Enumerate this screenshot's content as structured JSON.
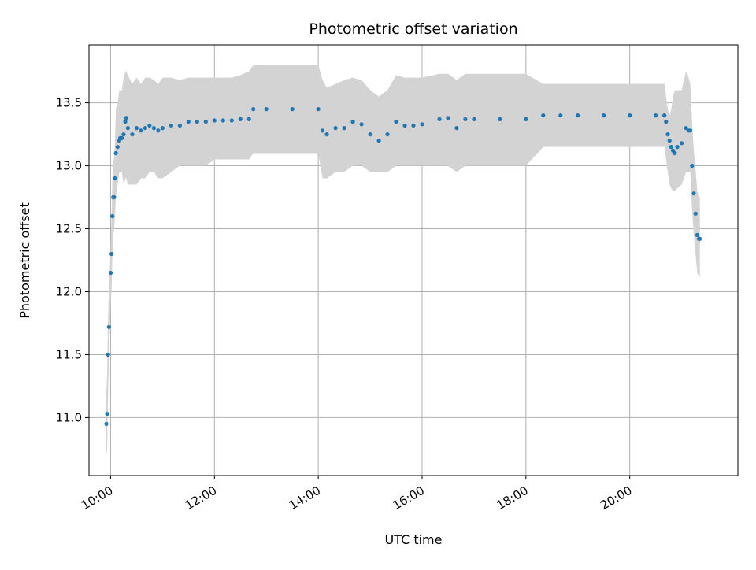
{
  "chart_data": {
    "type": "scatter",
    "title": "Photometric offset variation",
    "xlabel": "UTC time",
    "ylabel": "Photometric offset",
    "xlim": [
      "09:35",
      "22:05"
    ],
    "ylim": [
      10.54,
      13.96
    ],
    "grid": true,
    "x_ticks": [
      "10:00",
      "12:00",
      "14:00",
      "16:00",
      "18:00",
      "20:00"
    ],
    "y_ticks": [
      11.0,
      11.5,
      12.0,
      12.5,
      13.0,
      13.5
    ],
    "colors": {
      "points": "#1f77b4",
      "error_band": "#d3d3d3",
      "grid": "#b0b0b0"
    },
    "series": [
      {
        "x": [
          "09:55",
          "09:56",
          "09:57",
          "09:58",
          "10:00",
          "10:01",
          "10:02",
          "10:03",
          "10:04",
          "10:05",
          "10:06",
          "10:08",
          "10:10",
          "10:11",
          "10:12",
          "10:13",
          "10:15",
          "10:17",
          "10:18",
          "10:20",
          "10:25",
          "10:30",
          "10:35",
          "10:40",
          "10:45",
          "10:50",
          "10:55",
          "11:00",
          "11:10",
          "11:20",
          "11:30",
          "11:40",
          "11:50",
          "12:00",
          "12:10",
          "12:20",
          "12:30",
          "12:40",
          "12:45",
          "13:00",
          "13:30",
          "14:00",
          "14:05",
          "14:10",
          "14:20",
          "14:30",
          "14:40",
          "14:50",
          "15:00",
          "15:10",
          "15:20",
          "15:30",
          "15:40",
          "15:50",
          "16:00",
          "16:20",
          "16:30",
          "16:40",
          "16:50",
          "17:00",
          "17:30",
          "18:00",
          "18:20",
          "18:40",
          "19:00",
          "19:30",
          "20:00",
          "20:30",
          "20:40",
          "20:42",
          "20:44",
          "20:46",
          "20:48",
          "20:50",
          "20:52",
          "20:55",
          "21:00",
          "21:05",
          "21:08",
          "21:10",
          "21:12",
          "21:14",
          "21:16",
          "21:18",
          "21:20",
          "21:21"
        ],
        "y": [
          10.95,
          11.03,
          11.5,
          11.72,
          12.15,
          12.3,
          12.6,
          12.75,
          12.75,
          12.9,
          13.1,
          13.15,
          13.2,
          13.22,
          13.22,
          13.22,
          13.25,
          13.35,
          13.38,
          13.3,
          13.25,
          13.3,
          13.28,
          13.3,
          13.32,
          13.3,
          13.28,
          13.3,
          13.32,
          13.32,
          13.35,
          13.35,
          13.35,
          13.36,
          13.36,
          13.36,
          13.37,
          13.37,
          13.45,
          13.45,
          13.45,
          13.45,
          13.28,
          13.25,
          13.3,
          13.3,
          13.35,
          13.33,
          13.25,
          13.2,
          13.25,
          13.35,
          13.32,
          13.32,
          13.33,
          13.37,
          13.38,
          13.3,
          13.37,
          13.37,
          13.37,
          13.37,
          13.4,
          13.4,
          13.4,
          13.4,
          13.4,
          13.4,
          13.4,
          13.35,
          13.25,
          13.2,
          13.15,
          13.12,
          13.1,
          13.15,
          13.18,
          13.3,
          13.28,
          13.28,
          13.0,
          12.78,
          12.62,
          12.45,
          12.42,
          12.42
        ],
        "low": [
          10.7,
          10.75,
          11.2,
          11.5,
          11.9,
          12.0,
          12.3,
          12.45,
          12.5,
          12.6,
          12.75,
          12.85,
          12.95,
          12.95,
          12.95,
          12.95,
          12.85,
          12.9,
          12.9,
          12.85,
          12.85,
          12.85,
          12.9,
          12.9,
          12.95,
          12.95,
          12.9,
          12.9,
          12.95,
          13.0,
          13.0,
          13.0,
          13.0,
          13.05,
          13.05,
          13.05,
          13.05,
          13.05,
          13.1,
          13.1,
          13.1,
          13.1,
          12.9,
          12.9,
          12.95,
          12.95,
          13.0,
          13.0,
          12.95,
          12.95,
          12.95,
          13.0,
          13.0,
          13.0,
          13.0,
          13.0,
          13.0,
          12.95,
          13.0,
          13.0,
          13.0,
          13.0,
          13.15,
          13.15,
          13.15,
          13.15,
          13.15,
          13.15,
          13.15,
          13.05,
          12.95,
          12.85,
          12.82,
          12.8,
          12.8,
          12.82,
          12.85,
          12.95,
          12.95,
          12.95,
          12.65,
          12.45,
          12.3,
          12.15,
          12.12,
          12.12
        ],
        "high": [
          11.2,
          11.35,
          11.8,
          12.0,
          12.35,
          12.6,
          12.9,
          13.05,
          13.05,
          13.2,
          13.45,
          13.5,
          13.6,
          13.6,
          13.6,
          13.6,
          13.7,
          13.75,
          13.75,
          13.72,
          13.65,
          13.7,
          13.65,
          13.7,
          13.7,
          13.68,
          13.65,
          13.7,
          13.7,
          13.68,
          13.7,
          13.7,
          13.7,
          13.7,
          13.7,
          13.7,
          13.72,
          13.75,
          13.8,
          13.8,
          13.8,
          13.8,
          13.68,
          13.62,
          13.65,
          13.68,
          13.7,
          13.68,
          13.6,
          13.55,
          13.6,
          13.72,
          13.7,
          13.7,
          13.7,
          13.73,
          13.73,
          13.68,
          13.73,
          13.73,
          13.73,
          13.73,
          13.65,
          13.65,
          13.65,
          13.65,
          13.65,
          13.65,
          13.65,
          13.55,
          13.45,
          13.4,
          13.45,
          13.55,
          13.6,
          13.6,
          13.6,
          13.75,
          13.7,
          13.65,
          13.35,
          13.12,
          12.98,
          12.8,
          12.75,
          12.75
        ]
      }
    ]
  }
}
